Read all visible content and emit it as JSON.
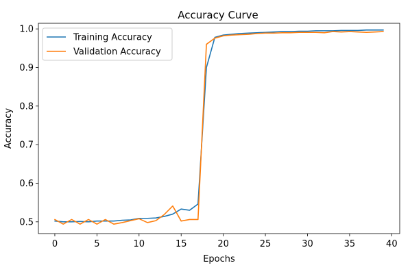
{
  "chart_data": {
    "type": "line",
    "title": "Accuracy Curve",
    "xlabel": "Epochs",
    "ylabel": "Accuracy",
    "xlim": [
      -1.95,
      40.95
    ],
    "ylim": [
      0.4695,
      1.0145
    ],
    "xticks": [
      0,
      5,
      10,
      15,
      20,
      25,
      30,
      35,
      40
    ],
    "yticks": [
      0.5,
      0.6,
      0.7,
      0.8,
      0.9,
      1.0
    ],
    "ytick_labels": [
      "0.5",
      "0.6",
      "0.7",
      "0.8",
      "0.9",
      "1.0"
    ],
    "grid": false,
    "legend_position": "upper-left",
    "x": [
      0,
      1,
      2,
      3,
      4,
      5,
      6,
      7,
      8,
      9,
      10,
      11,
      12,
      13,
      14,
      15,
      16,
      17,
      18,
      19,
      20,
      21,
      22,
      23,
      24,
      25,
      26,
      27,
      28,
      29,
      30,
      31,
      32,
      33,
      34,
      35,
      36,
      37,
      38,
      39
    ],
    "series": [
      {
        "name": "Training Accuracy",
        "color": "#1f77b4",
        "values": [
          0.502,
          0.5,
          0.5,
          0.501,
          0.5,
          0.502,
          0.502,
          0.502,
          0.504,
          0.505,
          0.509,
          0.509,
          0.51,
          0.514,
          0.52,
          0.533,
          0.53,
          0.546,
          0.9,
          0.978,
          0.984,
          0.986,
          0.988,
          0.989,
          0.99,
          0.991,
          0.992,
          0.993,
          0.993,
          0.994,
          0.994,
          0.995,
          0.995,
          0.995,
          0.996,
          0.996,
          0.996,
          0.997,
          0.997,
          0.997
        ]
      },
      {
        "name": "Validation Accuracy",
        "color": "#ff7f0e",
        "values": [
          0.506,
          0.494,
          0.506,
          0.494,
          0.506,
          0.494,
          0.506,
          0.494,
          0.498,
          0.503,
          0.508,
          0.498,
          0.503,
          0.519,
          0.541,
          0.502,
          0.506,
          0.506,
          0.96,
          0.976,
          0.982,
          0.984,
          0.985,
          0.986,
          0.988,
          0.989,
          0.989,
          0.99,
          0.99,
          0.991,
          0.991,
          0.991,
          0.99,
          0.993,
          0.992,
          0.993,
          0.992,
          0.991,
          0.992,
          0.993
        ]
      }
    ]
  }
}
